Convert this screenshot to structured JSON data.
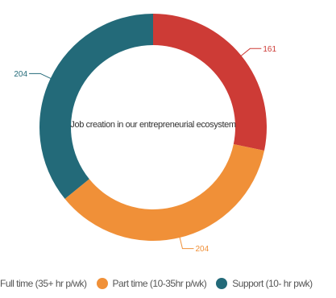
{
  "chart_data": {
    "type": "pie",
    "style": "donut",
    "title": "Job creation in our entrepreneurial ecosystem",
    "categories": [
      "Full time (35+ hr p/wk)",
      "Part time (10-35hr p/wk)",
      "Support (10- hr pwk)"
    ],
    "values": [
      161,
      204,
      204
    ],
    "colors": [
      "#cd3b36",
      "#f09038",
      "#236a79"
    ],
    "legend_position": "bottom"
  }
}
